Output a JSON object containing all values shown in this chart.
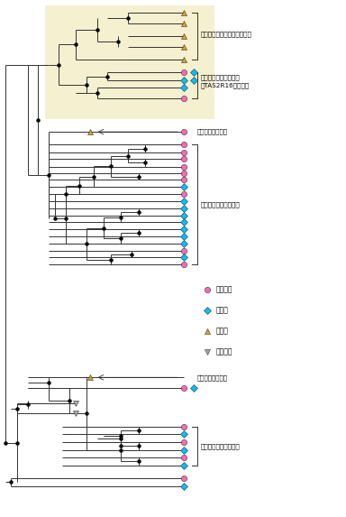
{
  "fig_width": 3.84,
  "fig_height": 5.73,
  "dpi": 100,
  "bg_color": "#ffffff",
  "tree_color": "#333333",
  "highlight_color": "#F5F0D0",
  "colors": {
    "placental": "#FF69B4",
    "marsupial": "#00BFFF",
    "monotreme": "#DAA520",
    "chicken": "#AAAAAA"
  },
  "labels": {
    "cluster1": "単孔類苦味受容体クラスター",
    "cluster2_l1": "胎生哺乳類クラスター",
    "cluster2_l2": "（TAS2R16を含む）",
    "mono_receptor1": "単孔類苦味受容体",
    "cluster3": "胎生哺乳類クラスター",
    "mono_receptor2": "単孔類苦味受容体",
    "cluster4": "胎生哺乳類クラスター",
    "leg_placental": "有胎盤類",
    "leg_marsupial": "有袋類",
    "leg_monotreme": "単孔類",
    "leg_chicken": "ニワトリ"
  }
}
